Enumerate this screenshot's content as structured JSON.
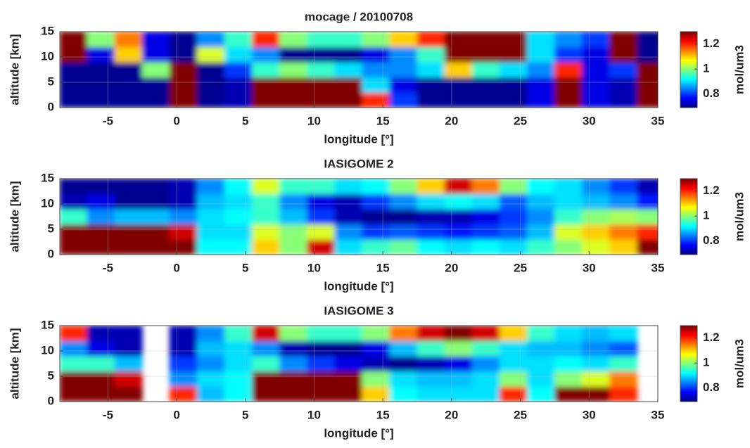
{
  "chart_data": [
    {
      "type": "heatmap",
      "title": "mocage / 20100708",
      "xlabel": "longitude [°]",
      "ylabel": "altitude [km]",
      "x": [
        -7.5,
        -5.5,
        -3.5,
        -1.5,
        0.5,
        2.5,
        4.5,
        6.5,
        8.5,
        10.5,
        12.5,
        14.5,
        16.5,
        18.5,
        20.5,
        22.5,
        24.5,
        26.5,
        28.5,
        30.5,
        32.5,
        34.5
      ],
      "y": [
        1.5,
        4.5,
        7.5,
        10.5,
        13.5
      ],
      "values": [
        [
          0.7,
          0.7,
          0.7,
          0.7,
          1.3,
          0.7,
          0.72,
          1.3,
          1.3,
          1.3,
          1.3,
          1.2,
          0.8,
          0.7,
          0.7,
          0.7,
          0.7,
          0.75,
          1.3,
          0.75,
          0.72,
          1.3
        ],
        [
          0.7,
          0.7,
          0.7,
          0.7,
          1.3,
          0.7,
          0.72,
          1.3,
          1.3,
          1.3,
          1.3,
          0.9,
          0.75,
          0.7,
          0.7,
          0.7,
          0.7,
          0.75,
          1.3,
          0.75,
          0.72,
          1.3
        ],
        [
          0.7,
          0.7,
          0.7,
          1.0,
          1.3,
          0.7,
          0.8,
          0.95,
          1.0,
          0.95,
          0.9,
          0.85,
          0.85,
          0.9,
          1.1,
          0.95,
          0.9,
          0.85,
          1.2,
          0.75,
          0.8,
          1.3
        ],
        [
          1.3,
          0.75,
          1.1,
          0.75,
          0.7,
          1.05,
          0.9,
          0.85,
          0.7,
          0.7,
          0.7,
          0.75,
          0.85,
          0.95,
          1.3,
          1.3,
          1.3,
          0.9,
          0.8,
          0.75,
          1.3,
          0.7
        ],
        [
          1.3,
          1.0,
          1.15,
          0.75,
          0.7,
          0.85,
          0.95,
          1.2,
          1.0,
          0.95,
          0.95,
          1.0,
          1.1,
          1.2,
          1.3,
          1.3,
          1.3,
          0.9,
          0.85,
          0.8,
          1.3,
          0.7
        ]
      ],
      "xlim": [
        -8.5,
        35
      ],
      "ylim": [
        0,
        15
      ],
      "xticks": [
        -5,
        0,
        5,
        10,
        15,
        20,
        25,
        30,
        35
      ],
      "yticks": [
        0,
        5,
        10,
        15
      ],
      "grid": true,
      "colorbar": {
        "label": "mol/um3",
        "clim": [
          0.69,
          1.3
        ],
        "ticks": [
          0.8,
          1,
          1.2
        ],
        "colormap": "jet"
      }
    },
    {
      "type": "heatmap",
      "title": "IASIGOME 2",
      "xlabel": "longitude [°]",
      "ylabel": "altitude [km]",
      "x": [
        -7.5,
        -5.5,
        -3.5,
        -1.5,
        0.5,
        2.5,
        4.5,
        6.5,
        8.5,
        10.5,
        12.5,
        14.5,
        16.5,
        18.5,
        20.5,
        22.5,
        24.5,
        26.5,
        28.5,
        30.5,
        32.5,
        34.5
      ],
      "y": [
        1.5,
        4.5,
        7.5,
        10.5,
        13.5
      ],
      "values": [
        [
          1.3,
          1.3,
          1.3,
          1.3,
          1.3,
          0.92,
          0.92,
          1.1,
          1.0,
          1.25,
          0.9,
          0.95,
          0.98,
          0.92,
          0.9,
          0.92,
          0.9,
          0.95,
          1.0,
          1.05,
          1.1,
          1.3
        ],
        [
          1.3,
          1.3,
          1.3,
          1.3,
          1.25,
          0.9,
          0.9,
          1.05,
          1.0,
          1.05,
          0.85,
          0.8,
          0.82,
          0.8,
          0.78,
          0.8,
          0.82,
          0.88,
          1.05,
          1.1,
          1.15,
          1.2
        ],
        [
          0.95,
          0.85,
          0.88,
          0.88,
          0.85,
          0.9,
          0.92,
          0.95,
          0.88,
          0.8,
          0.72,
          0.7,
          0.7,
          0.72,
          0.72,
          0.75,
          0.8,
          0.85,
          0.95,
          1.0,
          1.02,
          1.0
        ],
        [
          0.72,
          0.75,
          0.7,
          0.7,
          0.72,
          0.88,
          0.9,
          0.95,
          0.85,
          0.75,
          0.72,
          0.8,
          0.85,
          0.9,
          0.92,
          0.9,
          0.82,
          0.88,
          0.9,
          0.88,
          0.85,
          0.78
        ],
        [
          0.7,
          0.7,
          0.7,
          0.7,
          0.72,
          0.85,
          0.92,
          1.05,
          0.95,
          0.95,
          0.9,
          0.92,
          1.0,
          1.1,
          1.25,
          1.15,
          1.0,
          0.92,
          0.9,
          0.85,
          0.8,
          0.72
        ]
      ],
      "xlim": [
        -8.5,
        35
      ],
      "ylim": [
        0,
        15
      ],
      "xticks": [
        -5,
        0,
        5,
        10,
        15,
        20,
        25,
        30,
        35
      ],
      "yticks": [
        0,
        5,
        10,
        15
      ],
      "grid": true,
      "colorbar": {
        "label": "mol/um3",
        "clim": [
          0.69,
          1.3
        ],
        "ticks": [
          0.8,
          1,
          1.2
        ],
        "colormap": "jet"
      }
    },
    {
      "type": "heatmap",
      "title": "IASIGOME 3",
      "xlabel": "longitude [°]",
      "ylabel": "altitude [km]",
      "x": [
        -7.5,
        -5.5,
        -3.5,
        -1.5,
        0.5,
        2.5,
        4.5,
        6.5,
        8.5,
        10.5,
        12.5,
        14.5,
        16.5,
        18.5,
        20.5,
        22.5,
        24.5,
        26.5,
        28.5,
        30.5,
        32.5,
        34.5
      ],
      "y": [
        1.5,
        4.5,
        7.5,
        10.5,
        13.5
      ],
      "values": [
        [
          1.3,
          1.3,
          1.3,
          null,
          1.2,
          0.88,
          0.92,
          1.3,
          1.3,
          1.3,
          1.3,
          1.1,
          0.92,
          0.9,
          0.9,
          0.9,
          1.2,
          0.92,
          1.3,
          1.3,
          1.2,
          null
        ],
        [
          1.3,
          1.3,
          1.25,
          null,
          0.85,
          0.9,
          0.92,
          1.3,
          1.3,
          1.3,
          1.3,
          1.0,
          0.9,
          0.88,
          0.88,
          0.9,
          1.0,
          0.9,
          1.0,
          1.05,
          1.15,
          null
        ],
        [
          0.95,
          0.95,
          0.88,
          null,
          0.8,
          0.85,
          0.9,
          0.95,
          0.85,
          0.8,
          0.75,
          0.72,
          0.7,
          0.72,
          0.75,
          0.85,
          0.9,
          0.9,
          0.92,
          0.9,
          0.95,
          null
        ],
        [
          0.85,
          0.75,
          0.72,
          null,
          0.72,
          0.88,
          0.9,
          0.85,
          0.72,
          0.7,
          0.7,
          0.75,
          0.88,
          0.95,
          1.0,
          0.95,
          0.9,
          0.88,
          0.88,
          0.85,
          0.82,
          null
        ],
        [
          1.2,
          0.72,
          0.72,
          null,
          0.72,
          0.85,
          0.95,
          1.25,
          1.0,
          0.95,
          0.95,
          1.0,
          1.15,
          1.25,
          1.3,
          1.25,
          1.1,
          0.95,
          0.9,
          0.88,
          0.9,
          null
        ]
      ],
      "xlim": [
        -8.5,
        35
      ],
      "ylim": [
        0,
        15
      ],
      "xticks": [
        -5,
        0,
        5,
        10,
        15,
        20,
        25,
        30,
        35
      ],
      "yticks": [
        0,
        5,
        10,
        15
      ],
      "grid": true,
      "colorbar": {
        "label": "mol/um3",
        "clim": [
          0.69,
          1.3
        ],
        "ticks": [
          0.8,
          1,
          1.2
        ],
        "colormap": "jet"
      }
    }
  ]
}
